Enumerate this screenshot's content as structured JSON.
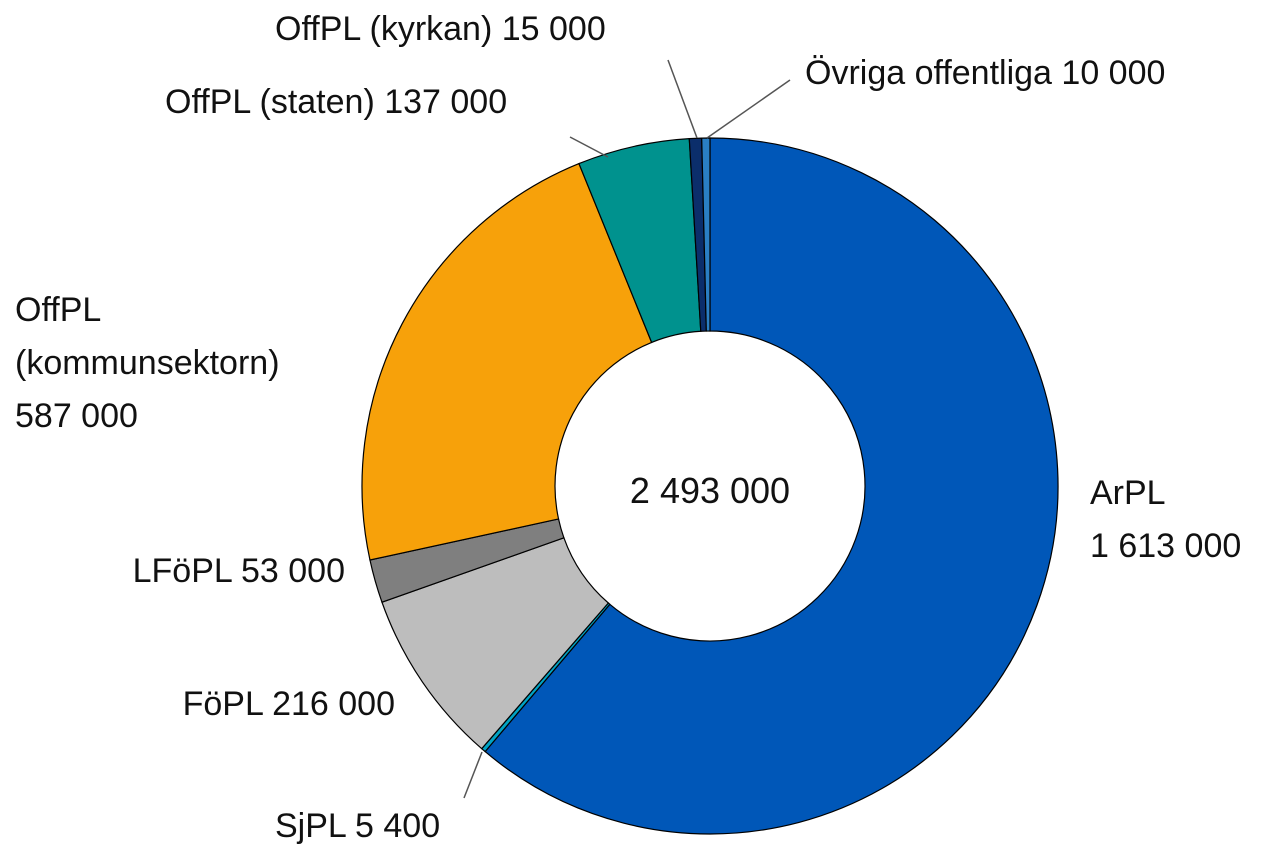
{
  "chart_data": {
    "type": "donut",
    "categories": [
      "ArPL",
      "SjPL",
      "FöPL",
      "LFöPL",
      "OffPL (kommunsektorn)",
      "OffPL (staten)",
      "OffPL (kyrkan)",
      "Övriga offentliga"
    ],
    "values": [
      1613000,
      5400,
      216000,
      53000,
      587000,
      137000,
      15000,
      10000
    ],
    "value_labels": [
      "1 613 000",
      "5 400",
      "216 000",
      "53 000",
      "587 000",
      "137 000",
      "15 000",
      "10 000"
    ],
    "colors": [
      "#0057b8",
      "#00a3c4",
      "#bdbdbd",
      "#7f7f7f",
      "#f7a10a",
      "#00928e",
      "#0b2e6b",
      "#2a7fc4"
    ],
    "center_label": "2 493 000"
  }
}
